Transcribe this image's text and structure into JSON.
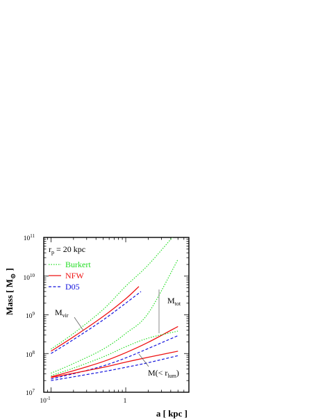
{
  "chart_data": {
    "type": "line",
    "title": "",
    "xlabel": "a [ kpc ]",
    "ylabel_main": "Mass [ M",
    "ylabel_sub": "⊙",
    "ylabel_end": " ]",
    "x_scale": "log",
    "y_scale": "log",
    "xlim": [
      0.08,
      7
    ],
    "ylim": [
      10000000,
      100000000000
    ],
    "x_ticks": [
      {
        "value": 0.1,
        "base": "10",
        "exp": "-1"
      },
      {
        "value": 1,
        "base": "1",
        "exp": ""
      }
    ],
    "y_ticks": [
      {
        "value": 10000000,
        "base": "10",
        "exp": "7"
      },
      {
        "value": 100000000,
        "base": "10",
        "exp": "8"
      },
      {
        "value": 1000000000,
        "base": "10",
        "exp": "9"
      },
      {
        "value": 10000000000,
        "base": "10",
        "exp": "10"
      },
      {
        "value": 100000000000,
        "base": "10",
        "exp": "11"
      }
    ],
    "legend": {
      "placement": "top-left",
      "header_main": "r",
      "header_sub": "p",
      "header_rest": " = 20 kpc",
      "entries": [
        {
          "label": "Burkert",
          "color": "#22dd22",
          "style": "dotted"
        },
        {
          "label": "NFW",
          "color": "#ee1111",
          "style": "solid"
        },
        {
          "label": "D05",
          "color": "#1111dd",
          "style": "dashed"
        }
      ]
    },
    "annotations": [
      {
        "id": "mvir",
        "main": "M",
        "sub": "vir",
        "rest": ""
      },
      {
        "id": "mtot",
        "main": "M",
        "sub": "tot",
        "rest": ""
      },
      {
        "id": "mlum",
        "main": "M(< r",
        "sub": "lum",
        "rest": ")"
      }
    ],
    "series": [
      {
        "name": "Burkert",
        "group": "M_vir",
        "color": "#22dd22",
        "style": "dotted",
        "x": [
          0.1,
          0.2,
          0.5,
          1,
          2,
          5
        ],
        "y": [
          130000000,
          330000000,
          1380000000,
          5500000000,
          19500000000,
          148000000000
        ]
      },
      {
        "name": "NFW",
        "group": "M_vir",
        "color": "#ee1111",
        "style": "solid",
        "x": [
          0.1,
          0.2,
          0.5,
          1,
          1.5
        ],
        "y": [
          115000000,
          270000000,
          910000000,
          2600000000,
          5400000000
        ]
      },
      {
        "name": "D05",
        "group": "M_vir",
        "color": "#1111dd",
        "style": "dashed",
        "x": [
          0.1,
          0.2,
          0.5,
          1,
          1.6
        ],
        "y": [
          100000000,
          230000000,
          740000000,
          2000000000,
          4000000000
        ]
      },
      {
        "name": "Burkert",
        "group": "M_tot",
        "color": "#22dd22",
        "style": "dotted",
        "x": [
          0.1,
          0.2,
          0.5,
          1,
          2,
          5
        ],
        "y": [
          31000000,
          55000000,
          130000000,
          330000000,
          1100000000,
          27000000000
        ]
      },
      {
        "name": "NFW",
        "group": "M_tot",
        "color": "#ee1111",
        "style": "solid",
        "x": [
          0.1,
          0.2,
          0.5,
          1,
          2,
          5
        ],
        "y": [
          25000000,
          36000000,
          62000000,
          105000000,
          195000000,
          500000000
        ]
      },
      {
        "name": "D05",
        "group": "M_tot",
        "color": "#1111dd",
        "style": "dashed",
        "x": [
          0.1,
          0.2,
          0.5,
          1,
          2,
          5
        ],
        "y": [
          22000000,
          30000000,
          48000000,
          77000000,
          135000000,
          290000000
        ]
      },
      {
        "name": "Burkert",
        "group": "M_lum",
        "color": "#22dd22",
        "style": "dotted",
        "x": [
          0.1,
          0.2,
          0.5,
          1,
          2,
          5
        ],
        "y": [
          27000000,
          42000000,
          82000000,
          150000000,
          250000000,
          380000000
        ]
      },
      {
        "name": "NFW",
        "group": "M_lum",
        "color": "#ee1111",
        "style": "solid",
        "x": [
          0.1,
          0.2,
          0.5,
          1,
          2,
          5
        ],
        "y": [
          24000000,
          31000000,
          44000000,
          60000000,
          80000000,
          115000000
        ]
      },
      {
        "name": "D05",
        "group": "M_lum",
        "color": "#1111dd",
        "style": "dashed",
        "x": [
          0.1,
          0.2,
          0.5,
          1,
          2,
          5
        ],
        "y": [
          20000000,
          25000000,
          34000000,
          44000000,
          58000000,
          88000000
        ]
      }
    ]
  }
}
